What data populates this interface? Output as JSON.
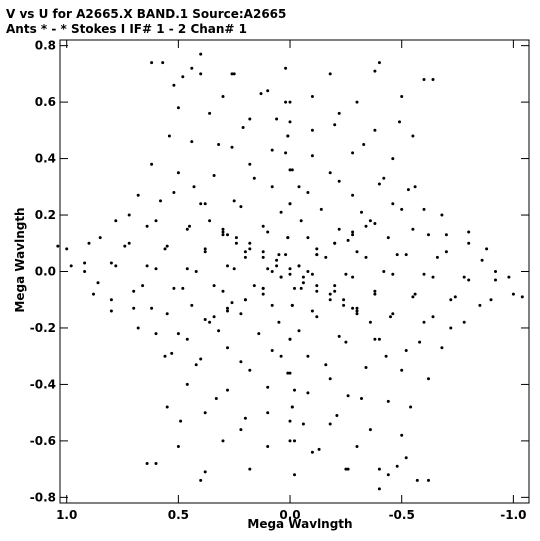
{
  "chart_data": {
    "type": "scatter",
    "title": "V vs U for A2665.X BAND.1   Source:A2665",
    "subtitle": "Ants * - *     Stokes I  IF# 1 - 2  Chan# 1",
    "xlabel": "Mega Wavlngth",
    "ylabel": "Mega Wavlngth",
    "xlim": [
      1.03,
      -1.07
    ],
    "ylim": [
      -0.82,
      0.82
    ],
    "x_reversed": true,
    "grid": false,
    "x_ticks": [
      {
        "value": 1.0,
        "label": "1.0"
      },
      {
        "value": 0.5,
        "label": "0.5"
      },
      {
        "value": 0.0,
        "label": "0.0"
      },
      {
        "value": -0.5,
        "label": "-0.5"
      },
      {
        "value": -1.0,
        "label": "-1.0"
      }
    ],
    "y_ticks": [
      {
        "value": 0.8,
        "label": "0.8"
      },
      {
        "value": 0.6,
        "label": "0.6"
      },
      {
        "value": 0.4,
        "label": "0.4"
      },
      {
        "value": 0.2,
        "label": "0.2"
      },
      {
        "value": 0.0,
        "label": "0.0"
      },
      {
        "value": -0.2,
        "label": "-0.2"
      },
      {
        "value": -0.4,
        "label": "-0.4"
      },
      {
        "value": -0.6,
        "label": "-0.6"
      },
      {
        "value": -0.8,
        "label": "-0.8"
      }
    ],
    "series": [
      {
        "marker_color": "#000000",
        "points": [
          {
            "u": 0.57,
            "v": 0.74
          },
          {
            "u": 0.48,
            "v": 0.69
          },
          {
            "u": 0.4,
            "v": 0.7
          },
          {
            "u": 0.25,
            "v": 0.7
          },
          {
            "u": 0.13,
            "v": 0.63
          },
          {
            "u": -0.22,
            "v": 0.56
          },
          {
            "u": -0.4,
            "v": 0.74
          },
          {
            "u": -0.49,
            "v": 0.53
          },
          {
            "u": -0.64,
            "v": 0.68
          },
          {
            "u": 0.32,
            "v": 0.45
          },
          {
            "u": 0.21,
            "v": 0.51
          },
          {
            "u": 0.06,
            "v": 0.54
          },
          {
            "u": -0.1,
            "v": 0.5
          },
          {
            "u": -0.33,
            "v": 0.45
          },
          {
            "u": -0.55,
            "v": 0.48
          },
          {
            "u": 0.43,
            "v": 0.3
          },
          {
            "u": 0.18,
            "v": 0.38
          },
          {
            "u": 0.02,
            "v": 0.42
          },
          {
            "u": -0.18,
            "v": 0.35
          },
          {
            "u": -0.42,
            "v": 0.33
          },
          {
            "u": -0.53,
            "v": 0.29
          },
          {
            "u": 0.52,
            "v": 0.28
          },
          {
            "u": 0.38,
            "v": 0.24
          },
          {
            "u": 0.25,
            "v": 0.25
          },
          {
            "u": 0.08,
            "v": 0.3
          },
          {
            "u": -0.08,
            "v": 0.28
          },
          {
            "u": -0.28,
            "v": 0.27
          },
          {
            "u": -0.46,
            "v": 0.24
          },
          {
            "u": -0.6,
            "v": 0.22
          },
          {
            "u": 0.72,
            "v": 0.2
          },
          {
            "u": 0.6,
            "v": 0.18
          },
          {
            "u": 0.45,
            "v": 0.16
          },
          {
            "u": 0.3,
            "v": 0.14
          },
          {
            "u": 0.12,
            "v": 0.16
          },
          {
            "u": -0.05,
            "v": 0.18
          },
          {
            "u": -0.22,
            "v": 0.15
          },
          {
            "u": -0.38,
            "v": 0.17
          },
          {
            "u": -0.55,
            "v": 0.15
          },
          {
            "u": -0.7,
            "v": 0.13
          },
          {
            "u": -0.8,
            "v": 0.1
          },
          {
            "u": 0.85,
            "v": 0.12
          },
          {
            "u": 0.72,
            "v": 0.1
          },
          {
            "u": 0.55,
            "v": 0.09
          },
          {
            "u": 0.38,
            "v": 0.08
          },
          {
            "u": 0.2,
            "v": 0.07
          },
          {
            "u": 0.05,
            "v": 0.06
          },
          {
            "u": -0.12,
            "v": 0.08
          },
          {
            "u": -0.3,
            "v": 0.07
          },
          {
            "u": -0.48,
            "v": 0.06
          },
          {
            "u": -0.66,
            "v": 0.05
          },
          {
            "u": -0.86,
            "v": 0.04
          },
          {
            "u": 1.0,
            "v": 0.08
          },
          {
            "u": 0.92,
            "v": 0.03
          },
          {
            "u": 0.8,
            "v": 0.03
          },
          {
            "u": 0.64,
            "v": 0.02
          },
          {
            "u": 0.46,
            "v": 0.01
          },
          {
            "u": 0.28,
            "v": 0.02
          },
          {
            "u": 0.1,
            "v": 0.01
          },
          {
            "u": -0.08,
            "v": 0.0
          },
          {
            "u": -0.25,
            "v": -0.01
          },
          {
            "u": -0.42,
            "v": 0.0
          },
          {
            "u": -0.6,
            "v": -0.01
          },
          {
            "u": -0.78,
            "v": -0.02
          },
          {
            "u": -0.92,
            "v": 0.0
          },
          {
            "u": -0.98,
            "v": -0.02
          },
          {
            "u": -1.04,
            "v": -0.09
          },
          {
            "u": 0.88,
            "v": -0.08
          },
          {
            "u": 0.7,
            "v": -0.07
          },
          {
            "u": 0.52,
            "v": -0.06
          },
          {
            "u": 0.34,
            "v": -0.05
          },
          {
            "u": 0.16,
            "v": -0.05
          },
          {
            "u": -0.02,
            "v": -0.06
          },
          {
            "u": -0.2,
            "v": -0.05
          },
          {
            "u": -0.38,
            "v": -0.07
          },
          {
            "u": -0.56,
            "v": -0.08
          },
          {
            "u": -0.74,
            "v": -0.09
          },
          {
            "u": -0.9,
            "v": -0.1
          },
          {
            "u": 0.8,
            "v": -0.14
          },
          {
            "u": 0.62,
            "v": -0.13
          },
          {
            "u": 0.44,
            "v": -0.12
          },
          {
            "u": 0.26,
            "v": -0.11
          },
          {
            "u": 0.08,
            "v": -0.12
          },
          {
            "u": -0.1,
            "v": -0.14
          },
          {
            "u": -0.28,
            "v": -0.13
          },
          {
            "u": -0.46,
            "v": -0.15
          },
          {
            "u": -0.64,
            "v": -0.16
          },
          {
            "u": -0.78,
            "v": -0.18
          },
          {
            "u": 0.68,
            "v": -0.2
          },
          {
            "u": 0.5,
            "v": -0.22
          },
          {
            "u": 0.32,
            "v": -0.21
          },
          {
            "u": 0.14,
            "v": -0.22
          },
          {
            "u": -0.04,
            "v": -0.21
          },
          {
            "u": -0.22,
            "v": -0.23
          },
          {
            "u": -0.4,
            "v": -0.24
          },
          {
            "u": -0.58,
            "v": -0.25
          },
          {
            "u": -0.68,
            "v": -0.27
          },
          {
            "u": 0.56,
            "v": -0.3
          },
          {
            "u": 0.4,
            "v": -0.31
          },
          {
            "u": 0.22,
            "v": -0.32
          },
          {
            "u": 0.04,
            "v": -0.3
          },
          {
            "u": -0.16,
            "v": -0.33
          },
          {
            "u": -0.34,
            "v": -0.34
          },
          {
            "u": -0.5,
            "v": -0.35
          },
          {
            "u": -0.62,
            "v": -0.38
          },
          {
            "u": 0.46,
            "v": -0.4
          },
          {
            "u": 0.28,
            "v": -0.42
          },
          {
            "u": 0.1,
            "v": -0.41
          },
          {
            "u": -0.08,
            "v": -0.43
          },
          {
            "u": -0.26,
            "v": -0.44
          },
          {
            "u": -0.44,
            "v": -0.46
          },
          {
            "u": -0.54,
            "v": -0.48
          },
          {
            "u": 0.38,
            "v": -0.5
          },
          {
            "u": 0.2,
            "v": -0.52
          },
          {
            "u": 0.0,
            "v": -0.53
          },
          {
            "u": -0.18,
            "v": -0.54
          },
          {
            "u": -0.36,
            "v": -0.56
          },
          {
            "u": -0.5,
            "v": -0.58
          },
          {
            "u": 0.5,
            "v": -0.62
          },
          {
            "u": 0.3,
            "v": -0.6
          },
          {
            "u": 0.1,
            "v": -0.62
          },
          {
            "u": -0.1,
            "v": -0.64
          },
          {
            "u": -0.3,
            "v": -0.62
          },
          {
            "u": -0.52,
            "v": -0.66
          },
          {
            "u": 0.6,
            "v": -0.68
          },
          {
            "u": 0.38,
            "v": -0.71
          },
          {
            "u": 0.18,
            "v": -0.7
          },
          {
            "u": -0.02,
            "v": -0.72
          },
          {
            "u": -0.26,
            "v": -0.7
          },
          {
            "u": -0.44,
            "v": -0.72
          },
          {
            "u": -0.4,
            "v": -0.77
          },
          {
            "u": -0.62,
            "v": -0.74
          },
          {
            "u": 0.3,
            "v": 0.13
          },
          {
            "u": 0.24,
            "v": 0.1
          },
          {
            "u": 0.18,
            "v": 0.08
          },
          {
            "u": 0.12,
            "v": 0.05
          },
          {
            "u": 0.06,
            "v": 0.02
          },
          {
            "u": 0.0,
            "v": -0.01
          },
          {
            "u": -0.06,
            "v": -0.04
          },
          {
            "u": -0.12,
            "v": -0.07
          },
          {
            "u": -0.18,
            "v": -0.1
          },
          {
            "u": -0.24,
            "v": -0.12
          },
          {
            "u": -0.3,
            "v": -0.15
          },
          {
            "u": -0.36,
            "v": -0.18
          },
          {
            "u": 0.36,
            "v": -0.18
          },
          {
            "u": 0.28,
            "v": -0.14
          },
          {
            "u": 0.2,
            "v": -0.1
          },
          {
            "u": 0.12,
            "v": -0.06
          },
          {
            "u": 0.04,
            "v": -0.02
          },
          {
            "u": -0.04,
            "v": 0.02
          },
          {
            "u": -0.12,
            "v": 0.06
          },
          {
            "u": -0.2,
            "v": 0.1
          },
          {
            "u": -0.28,
            "v": 0.13
          },
          {
            "u": -0.34,
            "v": 0.16
          },
          {
            "u": 0.02,
            "v": 0.6
          },
          {
            "u": 0.01,
            "v": 0.48
          },
          {
            "u": 0.0,
            "v": 0.36
          },
          {
            "u": 0.0,
            "v": 0.24
          },
          {
            "u": 0.01,
            "v": 0.12
          },
          {
            "u": -0.01,
            "v": -0.12
          },
          {
            "u": 0.0,
            "v": -0.24
          },
          {
            "u": 0.01,
            "v": -0.36
          },
          {
            "u": -0.01,
            "v": -0.48
          },
          {
            "u": 0.0,
            "v": -0.6
          }
        ]
      }
    ]
  }
}
